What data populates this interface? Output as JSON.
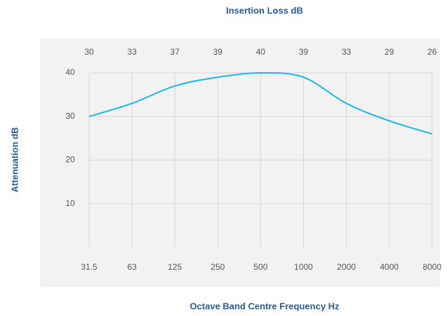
{
  "chart_data": {
    "type": "line",
    "title": "Insertion Loss dB",
    "x_label": "Octave Band Centre Frequency Hz",
    "y_label": "Attenuation dB",
    "categories": [
      "31.5",
      "63",
      "125",
      "250",
      "500",
      "1000",
      "2000",
      "4000",
      "8000"
    ],
    "values": [
      30,
      33,
      37,
      39,
      40,
      39,
      33,
      29,
      26
    ],
    "color": "#1ab7ea",
    "ylim": [
      0,
      40
    ],
    "yticks": [
      10,
      20,
      30,
      40
    ],
    "grid": true
  }
}
